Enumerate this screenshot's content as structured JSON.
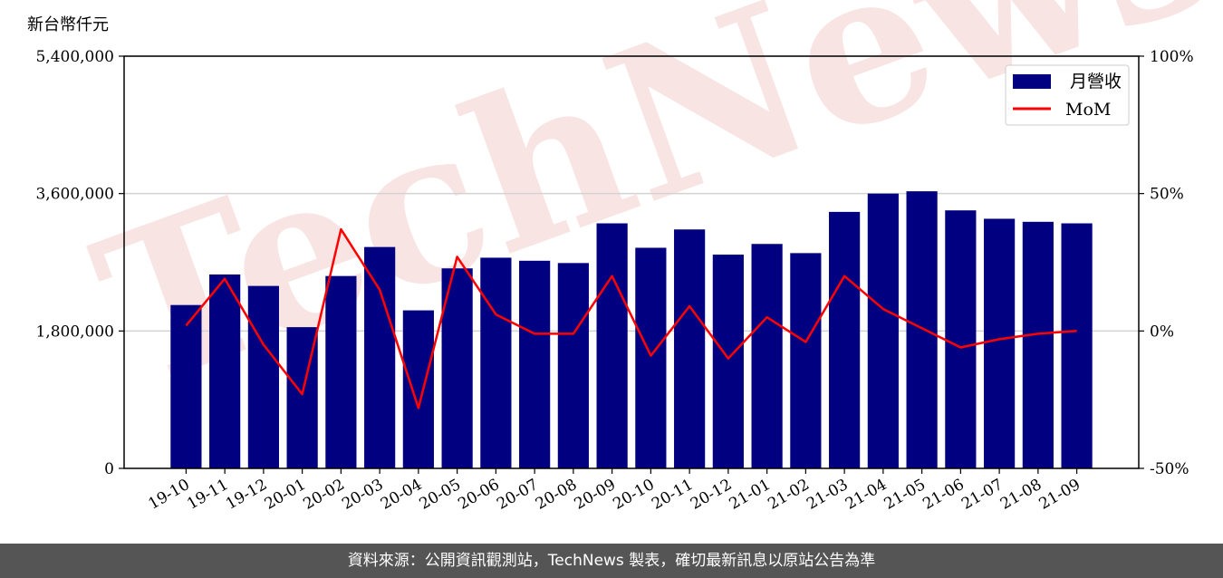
{
  "unit_label": "新台幣仟元",
  "watermark": "TechNews",
  "footer": "資料來源：公開資訊觀測站，TechNews 製表，確切最新訊息以原站公告為準",
  "colors": {
    "bar": "#000080",
    "line": "#ff0000",
    "grid": "#d3d3d3",
    "axis": "#000000",
    "footer_bg": "#555555",
    "watermark": "#f2c4c4"
  },
  "chart_data": {
    "type": "bar",
    "categories": [
      "19-10",
      "19-11",
      "19-12",
      "20-01",
      "20-02",
      "20-03",
      "20-04",
      "20-05",
      "20-06",
      "20-07",
      "20-08",
      "20-09",
      "20-10",
      "20-11",
      "20-12",
      "21-01",
      "21-02",
      "21-03",
      "21-04",
      "21-05",
      "21-06",
      "21-07",
      "21-08",
      "21-09"
    ],
    "series": [
      {
        "name": "月營收",
        "type": "bar",
        "axis": "left",
        "values": [
          2140000,
          2540000,
          2390000,
          1850000,
          2520000,
          2900000,
          2070000,
          2620000,
          2760000,
          2720000,
          2690000,
          3210000,
          2890000,
          3130000,
          2800000,
          2940000,
          2820000,
          3360000,
          3600000,
          3630000,
          3380000,
          3270000,
          3230000,
          3210000
        ]
      },
      {
        "name": "MoM",
        "type": "line",
        "axis": "right",
        "values": [
          2,
          19,
          -5,
          -23,
          37,
          15,
          -28,
          27,
          6,
          -1,
          -1,
          20,
          -9,
          9,
          -10,
          5,
          -4,
          20,
          8,
          1,
          -6,
          -3,
          -1,
          0
        ]
      }
    ],
    "left_axis": {
      "min": 0,
      "max": 5400000,
      "ticks": [
        0,
        1800000,
        3600000,
        5400000
      ],
      "tick_labels": [
        "0",
        "1,800,000",
        "3,600,000",
        "5,400,000"
      ]
    },
    "right_axis": {
      "min": -50,
      "max": 100,
      "ticks": [
        -50,
        0,
        50,
        100
      ],
      "tick_labels": [
        "-50%",
        "0%",
        "50%",
        "100%"
      ]
    },
    "grid": "horizontal",
    "legend_position": "top-right"
  }
}
